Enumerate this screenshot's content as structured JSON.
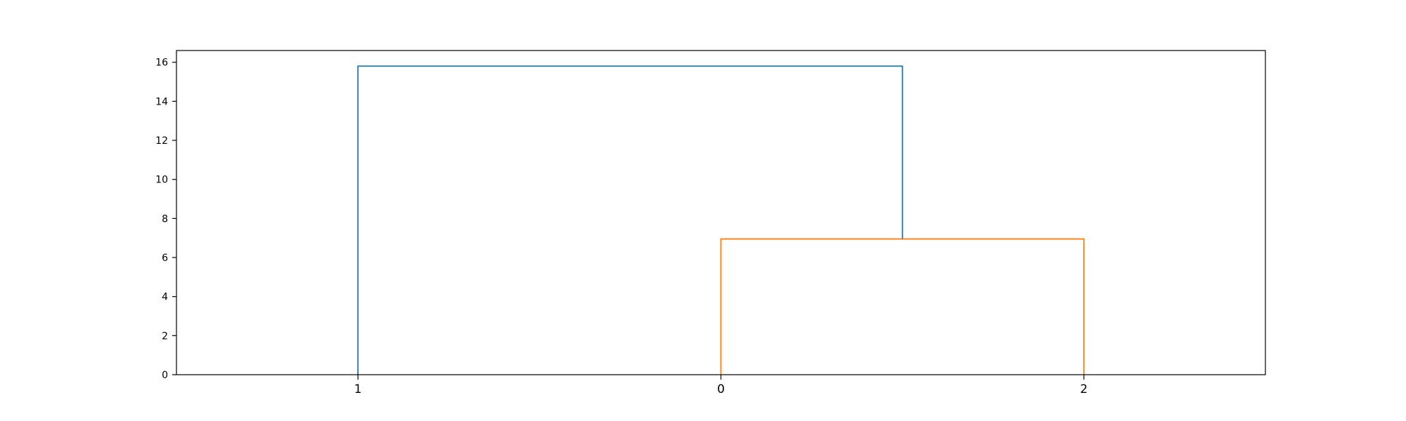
{
  "chart_data": {
    "type": "dendrogram",
    "title": "",
    "xlabel": "",
    "ylabel": "",
    "leaves": [
      "1",
      "0",
      "2"
    ],
    "ylim": [
      0,
      16.6
    ],
    "yticks": [
      "0",
      "2",
      "4",
      "6",
      "8",
      "10",
      "12",
      "14",
      "16"
    ],
    "grid": false,
    "links": [
      {
        "name": "merge-0-2",
        "color": "#ff7f0e",
        "left_x": 1,
        "right_x": 2,
        "left_y": 0,
        "right_y": 0,
        "height": 6.95
      },
      {
        "name": "merge-1-02",
        "color": "#1f77b4",
        "left_x": 0,
        "right_x": 1.5,
        "left_y": 0,
        "right_y": 6.95,
        "height": 15.8
      }
    ]
  }
}
